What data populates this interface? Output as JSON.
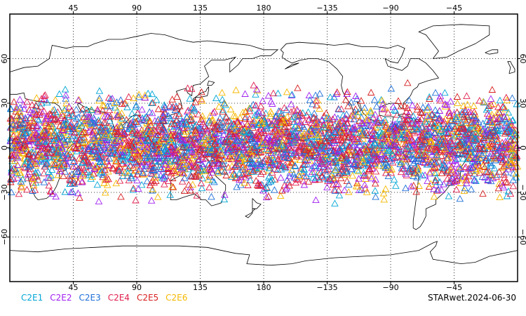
{
  "map": {
    "lon_labels_top": [
      "45",
      "90",
      "135",
      "180",
      "−135",
      "−90",
      "−45"
    ],
    "lon_labels_bottom": [
      "45",
      "90",
      "135",
      "180",
      "−135",
      "−90",
      "−45"
    ],
    "lat_labels": [
      "60",
      "30",
      "0",
      "−30",
      "−60"
    ],
    "lon_values": [
      45,
      90,
      135,
      180,
      -135,
      -90,
      -45
    ],
    "lat_values": [
      60,
      30,
      0,
      -30,
      -60
    ],
    "lon_range": [
      0,
      360
    ],
    "lat_range": [
      -90,
      90
    ],
    "grid": "dotted",
    "center_longitude": 180,
    "land_outline_color": "#000000"
  },
  "legend": [
    {
      "label": "C2E1",
      "color": "#00a6d6"
    },
    {
      "label": "C2E2",
      "color": "#a020f0"
    },
    {
      "label": "C2E3",
      "color": "#1e6fd8"
    },
    {
      "label": "C2E4",
      "color": "#e0204e"
    },
    {
      "label": "C2E5",
      "color": "#d81e1e"
    },
    {
      "label": "C2E6",
      "color": "#f5b800"
    }
  ],
  "caption": "STARwet.2024-06-30",
  "observations": {
    "marker": "triangle-open",
    "lat_band": [
      -40,
      45
    ],
    "coverage": "global, all longitudes"
  }
}
